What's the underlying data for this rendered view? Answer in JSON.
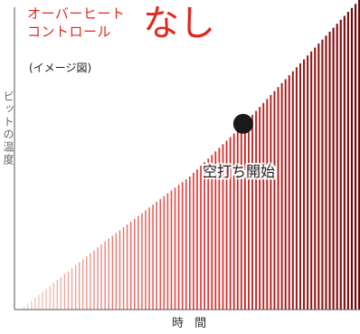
{
  "title": {
    "line1": "オーバーヒート",
    "line2": "コントロール",
    "emphasis": "なし"
  },
  "note": "(イメージ図)",
  "chart_data": {
    "type": "bar",
    "title": "オーバーヒートコントロール なし",
    "xlabel": "時 間",
    "ylabel": "ビットの温度",
    "grid": false,
    "legend": "none",
    "curve": [
      {
        "x": 0.0,
        "y": 0.0
      },
      {
        "x": 0.25,
        "y": 0.22
      },
      {
        "x": 0.5,
        "y": 0.43
      },
      {
        "x": 0.66,
        "y": 0.6
      },
      {
        "x": 1.0,
        "y": 1.0
      }
    ],
    "ylim": [
      0,
      1
    ],
    "xlim": [
      0,
      1
    ],
    "marker": {
      "x": 0.66,
      "y": 0.6,
      "label": "空打ち開始"
    },
    "colors": {
      "start": "#f2c9b8",
      "mid": "#e03030",
      "end": "#6e0808"
    }
  }
}
